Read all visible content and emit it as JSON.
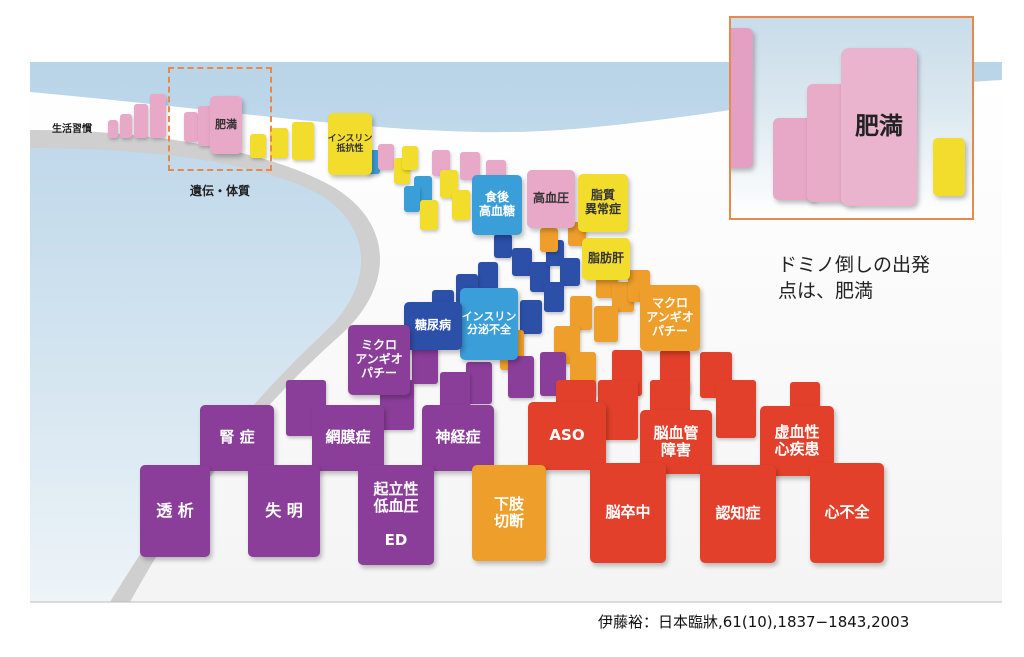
{
  "diagram": {
    "label_lifestyle": "生活習慣",
    "label_heredity": "遺伝・体質",
    "inset_caption_line1": "ドミノ倒しの出発",
    "inset_caption_line2": "点は、肥満",
    "citation": "伊藤裕：日本臨牀,61(10),1837−1843,2003",
    "inset_label": "肥満",
    "colors": {
      "pink": "#e8a8c8",
      "yellow": "#f2dc2c",
      "blue": "#3a9ed8",
      "navy": "#2c4fa8",
      "orange": "#ee9e2a",
      "purple": "#8a3e9a",
      "red": "#e2402a",
      "highlight_box": "#e8884a"
    },
    "tiles": [
      {
        "id": "obesity",
        "text": "肥満"
      },
      {
        "id": "insulin-resistance",
        "text": "インスリン\n抵抗性"
      },
      {
        "id": "postprandial-hyperglycemia",
        "text": "食後\n高血糖"
      },
      {
        "id": "hypertension",
        "text": "高血圧"
      },
      {
        "id": "dyslipidemia",
        "text": "脂質\n異常症"
      },
      {
        "id": "fatty-liver",
        "text": "脂肪肝"
      },
      {
        "id": "impaired-insulin-secretion",
        "text": "インスリン\n分泌不全"
      },
      {
        "id": "diabetes",
        "text": "糖尿病"
      },
      {
        "id": "macroangiopathy",
        "text": "マクロ\nアンギオ\nパチー"
      },
      {
        "id": "microangiopathy",
        "text": "ミクロ\nアンギオ\nパチー"
      },
      {
        "id": "nephropathy",
        "text": "腎 症"
      },
      {
        "id": "retinopathy",
        "text": "網膜症"
      },
      {
        "id": "neuropathy",
        "text": "神経症"
      },
      {
        "id": "aso",
        "text": "ASO"
      },
      {
        "id": "cerebrovascular-disorder",
        "text": "脳血管\n障害"
      },
      {
        "id": "ischemic-heart-disease",
        "text": "虚血性\n心疾患"
      },
      {
        "id": "dialysis",
        "text": "透 析"
      },
      {
        "id": "blindness",
        "text": "失 明"
      },
      {
        "id": "orthostatic-hypotension-ed",
        "text": "起立性\n低血圧\n\nED"
      },
      {
        "id": "amputation",
        "text": "下肢\n切断"
      },
      {
        "id": "stroke",
        "text": "脳卒中"
      },
      {
        "id": "dementia",
        "text": "認知症"
      },
      {
        "id": "heart-failure",
        "text": "心不全"
      }
    ]
  }
}
